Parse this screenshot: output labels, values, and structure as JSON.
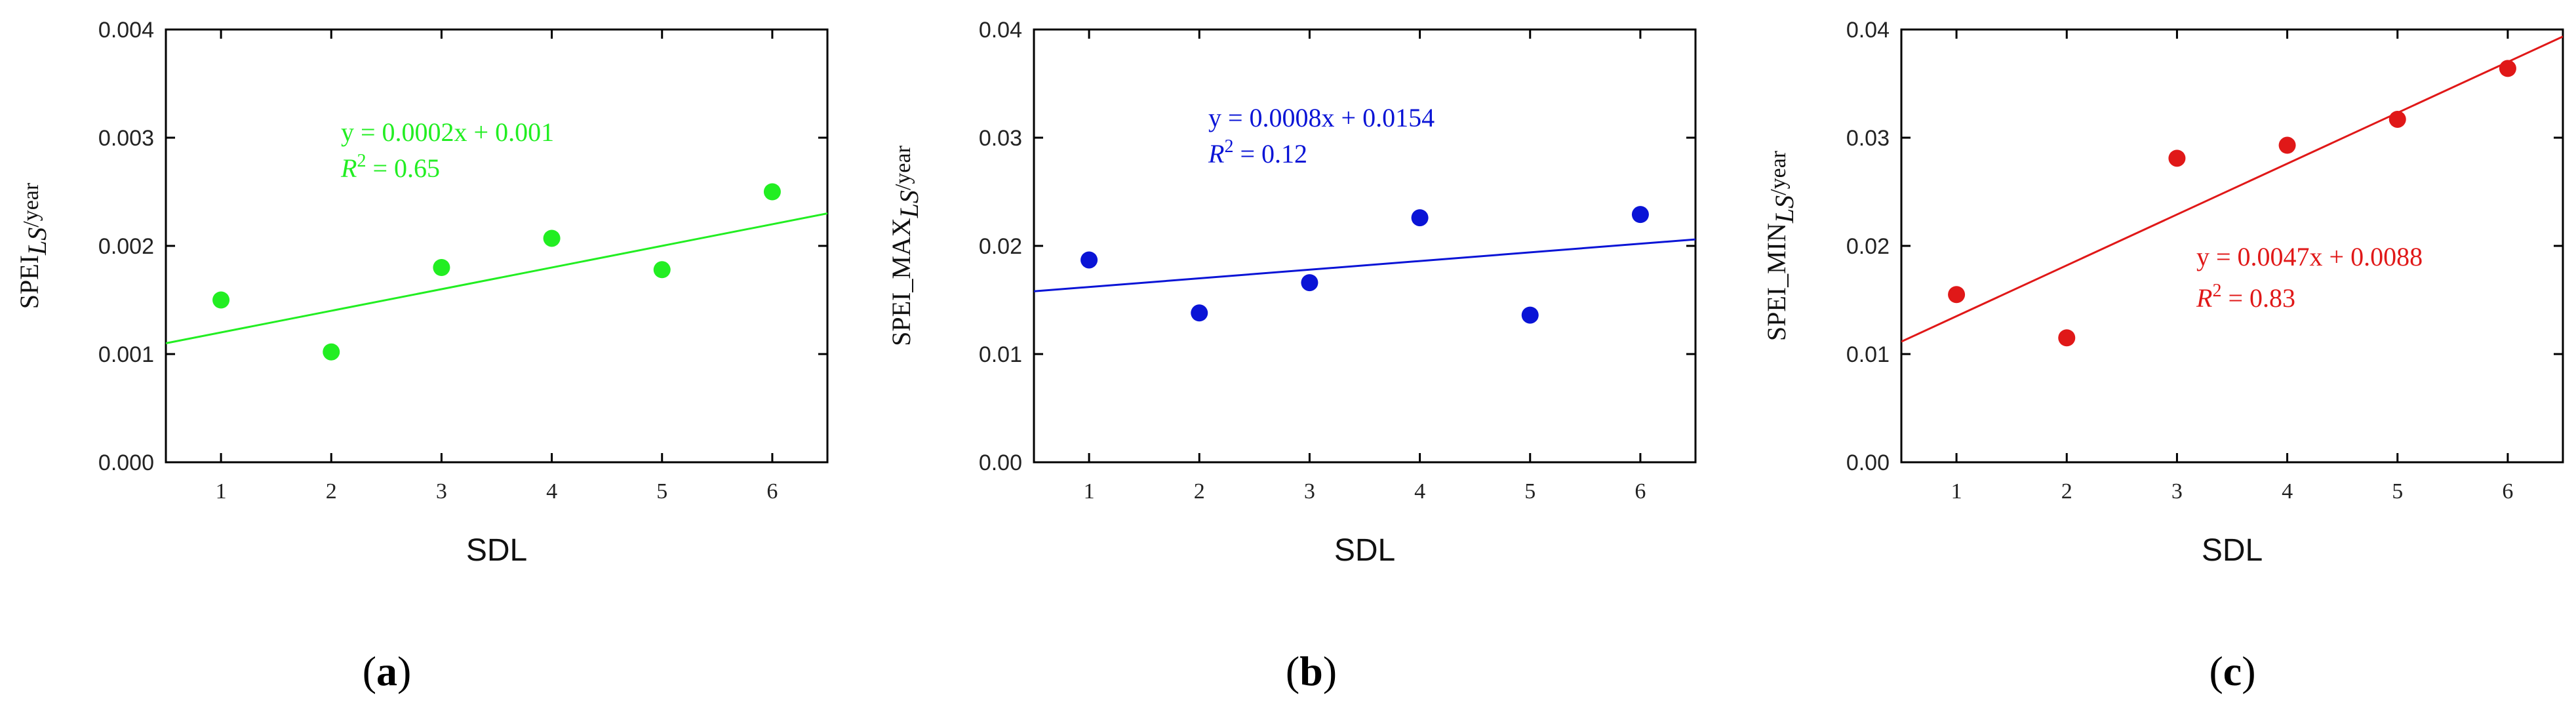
{
  "chart_data": [
    {
      "type": "scatter",
      "panel": "a",
      "caption_letter": "a",
      "xlabel": "SDL",
      "ylabel_main": "SPEI",
      "ylabel_sub": "LS",
      "ylabel_tail": "/year",
      "xlim": [
        0.5,
        6.5
      ],
      "ylim": [
        0,
        0.004
      ],
      "xticks": [
        1,
        2,
        3,
        4,
        5,
        6
      ],
      "ytick_labels": [
        "0.000",
        "0.001",
        "0.002",
        "0.003",
        "0.004"
      ],
      "yticks": [
        0,
        0.001,
        0.002,
        0.003,
        0.004
      ],
      "x": [
        1,
        2,
        3,
        4,
        5,
        6
      ],
      "y": [
        0.0015,
        0.00102,
        0.0018,
        0.00207,
        0.00178,
        0.0025
      ],
      "fit": {
        "slope": 0.0002,
        "intercept": 0.001
      },
      "equation": "y = 0.0002x + 0.001",
      "r2_label": "R",
      "r2_value": " = 0.65",
      "color": "#22ee22"
    },
    {
      "type": "scatter",
      "panel": "b",
      "caption_letter": "b",
      "xlabel": "SDL",
      "ylabel_main": "SPEI_MAX",
      "ylabel_sub": "LS",
      "ylabel_tail": "/year",
      "xlim": [
        0.5,
        6.5
      ],
      "ylim": [
        0,
        0.04
      ],
      "xticks": [
        1,
        2,
        3,
        4,
        5,
        6
      ],
      "ytick_labels": [
        "0.00",
        "0.01",
        "0.02",
        "0.03",
        "0.04"
      ],
      "yticks": [
        0,
        0.01,
        0.02,
        0.03,
        0.04
      ],
      "x": [
        1,
        2,
        3,
        4,
        5,
        6
      ],
      "y": [
        0.0187,
        0.0138,
        0.0166,
        0.0226,
        0.0136,
        0.0229
      ],
      "fit": {
        "slope": 0.0008,
        "intercept": 0.0154
      },
      "equation": "y = 0.0008x + 0.0154",
      "r2_label": "R",
      "r2_value": " = 0.12",
      "color": "#0a14d6"
    },
    {
      "type": "scatter",
      "panel": "c",
      "caption_letter": "c",
      "xlabel": "SDL",
      "ylabel_main": "SPEI_MIN",
      "ylabel_sub": "LS",
      "ylabel_tail": "/year",
      "xlim": [
        0.5,
        6.5
      ],
      "ylim": [
        0,
        0.04
      ],
      "xticks": [
        1,
        2,
        3,
        4,
        5,
        6
      ],
      "ytick_labels": [
        "0.00",
        "0.01",
        "0.02",
        "0.03",
        "0.04"
      ],
      "yticks": [
        0,
        0.01,
        0.02,
        0.03,
        0.04
      ],
      "x": [
        1,
        2,
        3,
        4,
        5,
        6
      ],
      "y": [
        0.0155,
        0.0115,
        0.0281,
        0.0293,
        0.0317,
        0.0364
      ],
      "fit": {
        "slope": 0.0047,
        "intercept": 0.0088
      },
      "equation": "y = 0.0047x + 0.0088",
      "r2_label": "R",
      "r2_value": " = 0.83",
      "color": "#e01818"
    }
  ]
}
